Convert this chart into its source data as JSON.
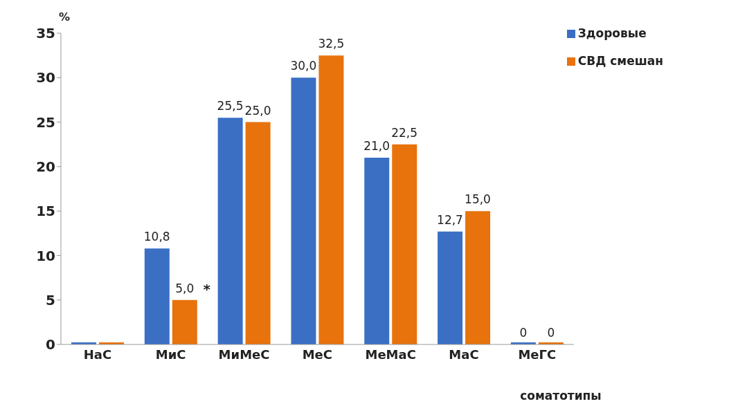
{
  "chart_data": {
    "type": "bar",
    "ylabel": "%",
    "xlabel": "соматотипы",
    "categories": [
      "НаС",
      "МиС",
      "МиМеС",
      "МеС",
      "МеМаС",
      "МаС",
      "МеГС"
    ],
    "series": [
      {
        "name": "Здоровые",
        "color": "#3a6fc4",
        "values": [
          0,
          10.8,
          25.5,
          30.0,
          21.0,
          12.7,
          0
        ],
        "value_labels": [
          null,
          "10,8",
          "25,5",
          "30,0",
          "21,0",
          "12,7",
          "0"
        ]
      },
      {
        "name": "СВД смешан",
        "color": "#e8720c",
        "values": [
          0,
          5.0,
          25.0,
          32.5,
          22.5,
          15.0,
          0
        ],
        "value_labels": [
          null,
          "5,0",
          "25,0",
          "32,5",
          "22,5",
          "15,0",
          "0"
        ]
      }
    ],
    "annotations": [
      {
        "text": "*",
        "x": "МиС",
        "y": 5.0
      }
    ],
    "ylim": [
      0,
      35
    ],
    "yticks": [
      0,
      5,
      10,
      15,
      20,
      25,
      30,
      35
    ],
    "grid": false,
    "legend": "top right"
  }
}
